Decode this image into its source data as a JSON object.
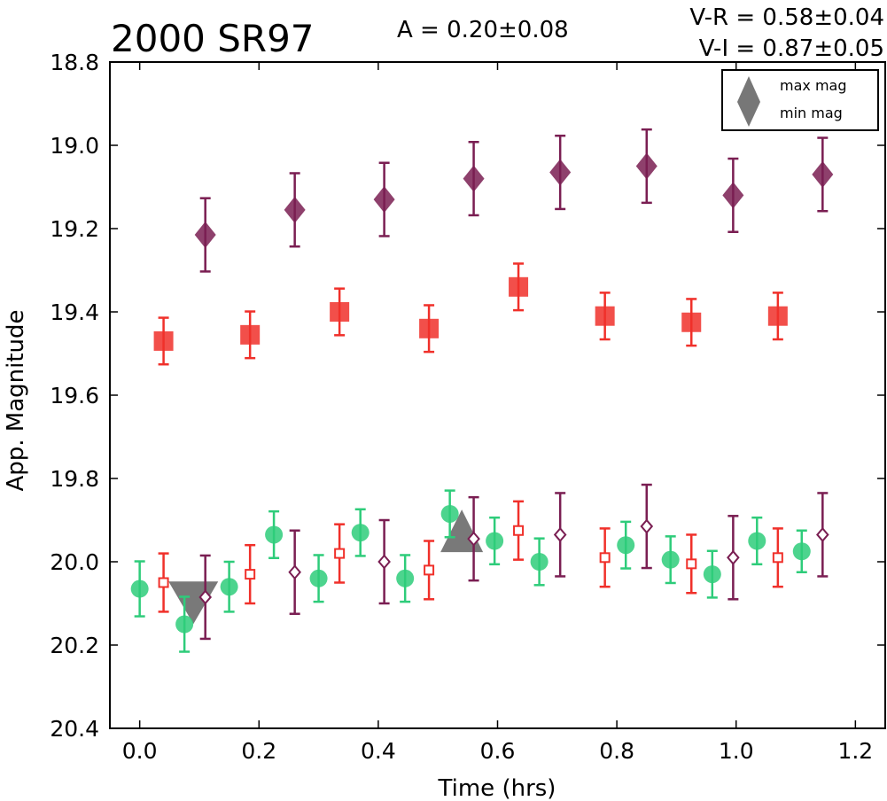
{
  "chart_data": {
    "type": "scatter",
    "title": "2000 SR97",
    "annotations": {
      "amplitude": "A  = 0.20±0.08",
      "v_r": "V-R = 0.58±0.04",
      "v_i": "V-I  = 0.87±0.05"
    },
    "xlabel": "Time (hrs)",
    "ylabel": "App. Magnitude",
    "xlim": [
      -0.05,
      1.25
    ],
    "ylim": [
      20.4,
      18.8
    ],
    "y_inverted": true,
    "xticks": [
      "0.0",
      "0.2",
      "0.4",
      "0.6",
      "0.8",
      "1.0",
      "1.2"
    ],
    "yticks": [
      "18.8",
      "19.0",
      "19.2",
      "19.4",
      "19.6",
      "19.8",
      "20.0",
      "20.2",
      "20.4"
    ],
    "grid": false,
    "legend": {
      "placement": "top-right",
      "entries": [
        {
          "label": "max mag",
          "marker": "triangle-up"
        },
        {
          "label": "min mag",
          "marker": "triangle-down"
        }
      ]
    },
    "colors": {
      "green": "#2ecc7a",
      "red": "#f0302a",
      "purple": "#7a1e52",
      "gray": "#6e6e6e"
    },
    "series": [
      {
        "marker": "diamond-filled",
        "color": "#7a1e52",
        "points": [
          {
            "x": 0.11,
            "y": 19.215,
            "err": 0.088
          },
          {
            "x": 0.26,
            "y": 19.155,
            "err": 0.088
          },
          {
            "x": 0.41,
            "y": 19.13,
            "err": 0.088
          },
          {
            "x": 0.56,
            "y": 19.08,
            "err": 0.088
          },
          {
            "x": 0.705,
            "y": 19.065,
            "err": 0.088
          },
          {
            "x": 0.85,
            "y": 19.05,
            "err": 0.088
          },
          {
            "x": 0.995,
            "y": 19.12,
            "err": 0.088
          },
          {
            "x": 1.145,
            "y": 19.07,
            "err": 0.088
          }
        ]
      },
      {
        "marker": "square-filled",
        "color": "#f0302a",
        "points": [
          {
            "x": 0.04,
            "y": 19.47,
            "err": 0.056
          },
          {
            "x": 0.185,
            "y": 19.455,
            "err": 0.056
          },
          {
            "x": 0.335,
            "y": 19.4,
            "err": 0.056
          },
          {
            "x": 0.485,
            "y": 19.44,
            "err": 0.056
          },
          {
            "x": 0.635,
            "y": 19.34,
            "err": 0.056
          },
          {
            "x": 0.78,
            "y": 19.41,
            "err": 0.056
          },
          {
            "x": 0.925,
            "y": 19.425,
            "err": 0.056
          },
          {
            "x": 1.07,
            "y": 19.41,
            "err": 0.056
          }
        ]
      },
      {
        "marker": "circle-filled",
        "color": "#2ecc7a",
        "points": [
          {
            "x": 0.0,
            "y": 20.065,
            "err": 0.066
          },
          {
            "x": 0.075,
            "y": 20.15,
            "err": 0.066
          },
          {
            "x": 0.15,
            "y": 20.06,
            "err": 0.06
          },
          {
            "x": 0.225,
            "y": 19.935,
            "err": 0.056
          },
          {
            "x": 0.3,
            "y": 20.04,
            "err": 0.056
          },
          {
            "x": 0.37,
            "y": 19.93,
            "err": 0.056
          },
          {
            "x": 0.445,
            "y": 20.04,
            "err": 0.056
          },
          {
            "x": 0.52,
            "y": 19.885,
            "err": 0.056
          },
          {
            "x": 0.595,
            "y": 19.95,
            "err": 0.056
          },
          {
            "x": 0.67,
            "y": 20.0,
            "err": 0.056
          },
          {
            "x": 0.815,
            "y": 19.96,
            "err": 0.056
          },
          {
            "x": 0.89,
            "y": 19.995,
            "err": 0.056
          },
          {
            "x": 0.96,
            "y": 20.03,
            "err": 0.056
          },
          {
            "x": 1.035,
            "y": 19.95,
            "err": 0.056
          },
          {
            "x": 1.11,
            "y": 19.975,
            "err": 0.05
          }
        ]
      },
      {
        "marker": "square-open",
        "color": "#f0302a",
        "points": [
          {
            "x": 0.04,
            "y": 20.05,
            "err": 0.07
          },
          {
            "x": 0.185,
            "y": 20.03,
            "err": 0.07
          },
          {
            "x": 0.335,
            "y": 19.98,
            "err": 0.07
          },
          {
            "x": 0.485,
            "y": 20.02,
            "err": 0.07
          },
          {
            "x": 0.635,
            "y": 19.925,
            "err": 0.07
          },
          {
            "x": 0.78,
            "y": 19.99,
            "err": 0.07
          },
          {
            "x": 0.925,
            "y": 20.005,
            "err": 0.07
          },
          {
            "x": 1.07,
            "y": 19.99,
            "err": 0.07
          }
        ]
      },
      {
        "marker": "diamond-open",
        "color": "#7a1e52",
        "points": [
          {
            "x": 0.11,
            "y": 20.085,
            "err": 0.1
          },
          {
            "x": 0.26,
            "y": 20.025,
            "err": 0.1
          },
          {
            "x": 0.41,
            "y": 20.0,
            "err": 0.1
          },
          {
            "x": 0.56,
            "y": 19.945,
            "err": 0.1
          },
          {
            "x": 0.705,
            "y": 19.935,
            "err": 0.1
          },
          {
            "x": 0.85,
            "y": 19.915,
            "err": 0.1
          },
          {
            "x": 0.995,
            "y": 19.99,
            "err": 0.1
          },
          {
            "x": 1.145,
            "y": 19.935,
            "err": 0.1
          }
        ]
      }
    ],
    "extrema": [
      {
        "label": "max mag",
        "x": 0.54,
        "y": 19.93,
        "marker": "triangle-up"
      },
      {
        "label": "min mag",
        "x": 0.09,
        "y": 20.09,
        "marker": "triangle-down"
      }
    ]
  }
}
